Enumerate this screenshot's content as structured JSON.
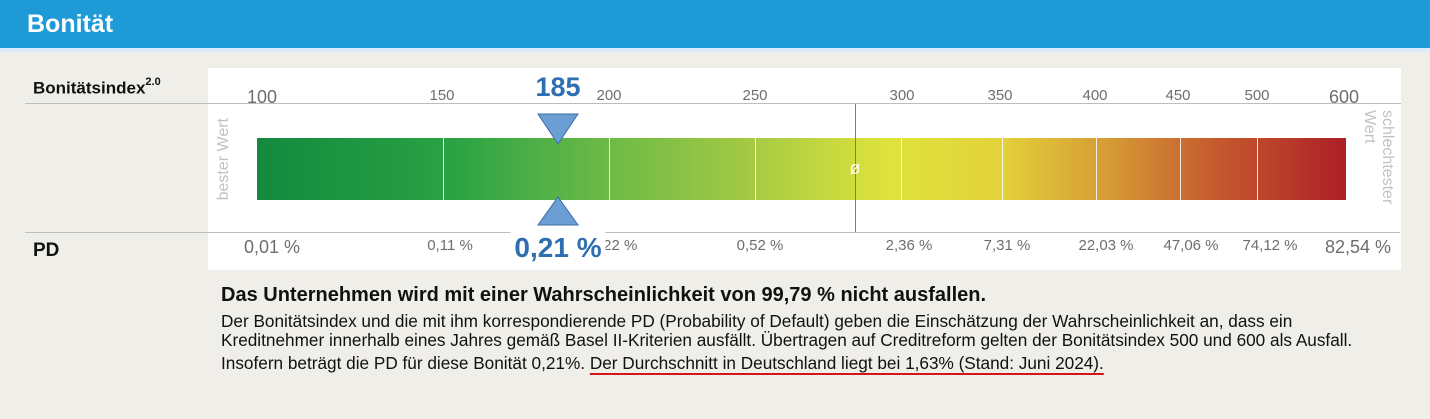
{
  "header": {
    "title": "Bonität"
  },
  "labels": {
    "index": "Bonitätsindex",
    "index_sup": "2.0",
    "pd": "PD"
  },
  "scale": {
    "index_ticks": [
      "100",
      "150",
      "200",
      "250",
      "300",
      "350",
      "400",
      "450",
      "500",
      "600"
    ],
    "pd_ticks": [
      "0,01 %",
      "0,11 %",
      "0,22 %",
      "0,52 %",
      "2,36 %",
      "7,31 %",
      "22,03 %",
      "47,06 %",
      "74,12 %",
      "82,54 %"
    ],
    "best_label": "bester Wert",
    "worst_label_1": "schlechtester",
    "worst_label_2": "Wert",
    "average_symbol": "ø"
  },
  "marker": {
    "index_value": "185",
    "pd_value": "0,21 %"
  },
  "text": {
    "headline": "Das Unternehmen wird mit einer Wahrscheinlichkeit von 99,79 % nicht ausfallen.",
    "paragraph": "Der Bonitätsindex und die mit ihm korrespondierende PD (Probability of Default) geben die Einschätzung der Wahrscheinlichkeit an, dass ein Kreditnehmer innerhalb eines Jahres gemäß Basel II-Kriterien ausfällt. Übertragen auf Creditreform gelten der Bonitätsindex 500 und 600 als Ausfall.",
    "insofern": "Insofern beträgt die PD für diese Bonität 0,21%.",
    "average_note": "Der Durchschnitt in Deutschland liegt bei 1,63% (Stand: Juni 2024)."
  },
  "colors": {
    "header": "#1e9ad6",
    "marker": "#2f6fb1",
    "underline": "#d8141b"
  }
}
